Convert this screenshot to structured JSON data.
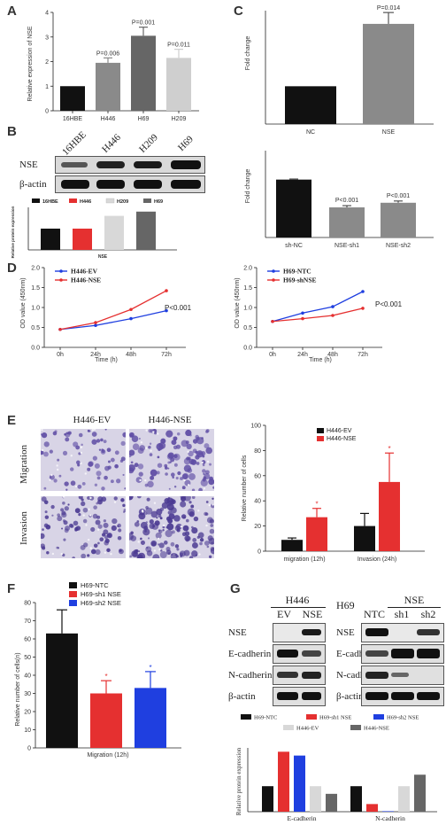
{
  "panels": {
    "A": "A",
    "B": "B",
    "C": "C",
    "D": "D",
    "E": "E",
    "F": "F",
    "G": "G"
  },
  "colors": {
    "black": "#111111",
    "red": "#e53030",
    "blue": "#1f3fe0",
    "lightgray": "#cfcfcf",
    "darkgray": "#666666",
    "gray": "#8a8a8a",
    "blot_bg": "#e6e6e6",
    "band": "#1a1a1a",
    "stain": "#6a55a8"
  },
  "chart_data": [
    {
      "id": "A",
      "type": "bar",
      "ylabel": "Relative expression of NSE",
      "categories": [
        "16HBE",
        "H446",
        "H69",
        "H209"
      ],
      "values": [
        1.0,
        1.95,
        3.05,
        2.15
      ],
      "errors": [
        0,
        0.2,
        0.35,
        0.35
      ],
      "pvalues": [
        "",
        "P=0.006",
        "P=0.001",
        "P=0.011"
      ],
      "ylim": [
        0,
        4
      ],
      "yticks": [
        "0",
        "1",
        "2",
        "3",
        "4"
      ],
      "colors": [
        "#111111",
        "#8a8a8a",
        "#666666",
        "#cfcfcf"
      ]
    },
    {
      "id": "B_quant",
      "type": "bar",
      "ylabel": "Relative protein expression",
      "xlabel": "NSE",
      "categories": [
        "16HBE",
        "H446",
        "H209",
        "H69"
      ],
      "values": [
        1.0,
        1.0,
        1.6,
        1.8
      ],
      "ylim": [
        0,
        2.0
      ],
      "yticks": [
        "0.0",
        "0.5",
        "1.0",
        "1.5",
        "2.0"
      ],
      "colors": [
        "#111111",
        "#e53030",
        "#d8d8d8",
        "#666666"
      ]
    },
    {
      "id": "C_top",
      "type": "bar",
      "ylabel": "Fold change",
      "categories": [
        "NC",
        "NSE"
      ],
      "values": [
        1.0,
        2.65
      ],
      "errors": [
        0,
        0.3
      ],
      "pvalues": [
        "",
        "P=0.014"
      ],
      "ylim": [
        0,
        3
      ],
      "yticks": [
        "0",
        "1",
        "2",
        "3"
      ],
      "colors": [
        "#111111",
        "#8a8a8a"
      ]
    },
    {
      "id": "C_bottom",
      "type": "bar",
      "ylabel": "Fold change",
      "categories": [
        "sh-NC",
        "NSE-sh1",
        "NSE-sh2"
      ],
      "values": [
        1.0,
        0.52,
        0.6
      ],
      "errors": [
        0.01,
        0.03,
        0.03
      ],
      "pvalues": [
        "",
        "P<0.001",
        "P<0.001"
      ],
      "ylim": [
        0,
        1.5
      ],
      "yticks": [
        "0.0",
        "0.5",
        "1.0",
        "1.5"
      ],
      "colors": [
        "#111111",
        "#8a8a8a",
        "#8a8a8a"
      ]
    },
    {
      "id": "D_left",
      "type": "line",
      "xlabel": "Time (h)",
      "ylabel": "OD value (450nm)",
      "x": [
        "0h",
        "24h",
        "48h",
        "72h"
      ],
      "series": [
        {
          "name": "H446-EV",
          "values": [
            0.45,
            0.55,
            0.72,
            0.92
          ],
          "color": "#1f3fe0"
        },
        {
          "name": "H446-NSE",
          "values": [
            0.45,
            0.62,
            0.95,
            1.42
          ],
          "color": "#e53030"
        }
      ],
      "ylim": [
        0,
        2.0
      ],
      "yticks": [
        "0.0",
        "0.5",
        "1.0",
        "1.5",
        "2.0"
      ],
      "annotation": "P<0.001"
    },
    {
      "id": "D_right",
      "type": "line",
      "xlabel": "Time (h)",
      "ylabel": "OD value (450nm)",
      "x": [
        "0h",
        "24h",
        "48h",
        "72h"
      ],
      "series": [
        {
          "name": "H69-NTC",
          "values": [
            0.65,
            0.86,
            1.02,
            1.4
          ],
          "color": "#1f3fe0"
        },
        {
          "name": "H69-shNSE",
          "values": [
            0.65,
            0.72,
            0.8,
            0.98
          ],
          "color": "#e53030"
        }
      ],
      "ylim": [
        0,
        2.0
      ],
      "yticks": [
        "0.0",
        "0.5",
        "1.0",
        "1.5",
        "2.0"
      ],
      "annotation": "P<0.001"
    },
    {
      "id": "E_chart",
      "type": "bar",
      "ylabel": "Relative number of cells",
      "categories": [
        "migration  (12h)",
        "Invasion  (24h)"
      ],
      "series": [
        {
          "name": "H446-EV",
          "values": [
            9,
            20
          ],
          "errors": [
            1.5,
            10
          ],
          "color": "#111111"
        },
        {
          "name": "H446-NSE",
          "values": [
            27,
            55
          ],
          "errors": [
            7,
            23
          ],
          "color": "#e53030"
        }
      ],
      "ylim": [
        0,
        100
      ],
      "yticks": [
        "0",
        "20",
        "40",
        "60",
        "80",
        "100"
      ],
      "stars": [
        "*",
        "*"
      ]
    },
    {
      "id": "F",
      "type": "bar",
      "ylabel": "Relative number of cells(n)",
      "xlabel": "Migration (12h)",
      "series": [
        {
          "name": "H69-NTC",
          "values": [
            63
          ],
          "errors": [
            13
          ],
          "color": "#111111"
        },
        {
          "name": "H69-sh1 NSE",
          "values": [
            30
          ],
          "errors": [
            7
          ],
          "color": "#e53030"
        },
        {
          "name": "H69-sh2 NSE",
          "values": [
            33
          ],
          "errors": [
            9
          ],
          "color": "#1f3fe0"
        }
      ],
      "ylim": [
        0,
        80
      ],
      "yticks": [
        "0",
        "10",
        "20",
        "30",
        "40",
        "50",
        "60",
        "70",
        "80"
      ],
      "stars": [
        "",
        "*",
        "*"
      ]
    },
    {
      "id": "G_quant",
      "type": "bar",
      "ylabel": "Relative protein expression",
      "categories": [
        "E-cadherin",
        "N-cadherin"
      ],
      "series": [
        {
          "name": "H69-NTC",
          "values": [
            1.0,
            1.0
          ],
          "color": "#111111"
        },
        {
          "name": "H69-sh1 NSE",
          "values": [
            2.35,
            0.3
          ],
          "color": "#e53030"
        },
        {
          "name": "H69-sh2 NSE",
          "values": [
            2.2,
            0.02
          ],
          "color": "#1f3fe0"
        },
        {
          "name": "H446-EV",
          "values": [
            1.0,
            1.0
          ],
          "color": "#d8d8d8"
        },
        {
          "name": "H446-NSE",
          "values": [
            0.7,
            1.45
          ],
          "color": "#666666"
        }
      ],
      "ylim": [
        0,
        2.5
      ]
    }
  ],
  "blot_B": {
    "lanes": [
      "16HBE",
      "H446",
      "H209",
      "H69"
    ],
    "rows": [
      "NSE",
      "β-actin"
    ]
  },
  "E_images": {
    "cols": [
      "H446-EV",
      "H446-NSE"
    ],
    "rows": [
      "Migration",
      "Invasion"
    ]
  },
  "blot_G": {
    "left_title": "H446",
    "left_lanes": [
      "EV",
      "NSE"
    ],
    "right_title": "H69",
    "right_group": "NSE",
    "right_lanes": [
      "NTC",
      "sh1",
      "sh2"
    ],
    "rows": [
      "NSE",
      "E-cadherin",
      "N-cadherin",
      "β-actin"
    ]
  }
}
